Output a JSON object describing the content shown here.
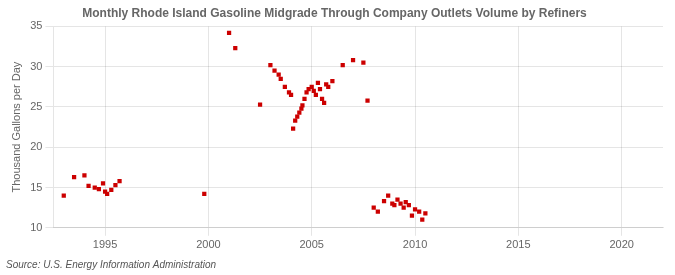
{
  "chart_data": {
    "type": "scatter",
    "title": "Monthly Rhode Island Gasoline Midgrade Through Company Outlets Volume by Refiners",
    "ylabel": "Thousand Gallons per Day",
    "source": "Source: U.S. Energy Information Administration",
    "color": "#cc0000",
    "marker": "square",
    "grid": true,
    "xlim": [
      1992.5,
      2022
    ],
    "ylim": [
      10,
      35
    ],
    "xticks": [
      1995,
      2000,
      2005,
      2010,
      2015,
      2020
    ],
    "yticks": [
      10,
      15,
      20,
      25,
      30,
      35
    ],
    "x": [
      1993.0,
      1993.5,
      1994.0,
      1994.2,
      1994.5,
      1994.7,
      1994.9,
      1995.0,
      1995.1,
      1995.3,
      1995.5,
      1995.7,
      1999.8,
      2001.0,
      2001.3,
      2002.5,
      2003.0,
      2003.2,
      2003.4,
      2003.5,
      2003.7,
      2003.9,
      2004.0,
      2004.1,
      2004.2,
      2004.3,
      2004.4,
      2004.5,
      2004.55,
      2004.65,
      2004.75,
      2004.85,
      2005.0,
      2005.1,
      2005.2,
      2005.3,
      2005.4,
      2005.5,
      2005.6,
      2005.7,
      2005.8,
      2006.0,
      2006.5,
      2007.0,
      2007.5,
      2007.7,
      2008.0,
      2008.2,
      2008.5,
      2008.7,
      2008.9,
      2009.0,
      2009.15,
      2009.3,
      2009.45,
      2009.55,
      2009.7,
      2009.85,
      2010.0,
      2010.2,
      2010.35,
      2010.5
    ],
    "values": [
      14.0,
      16.3,
      16.5,
      15.2,
      15.0,
      14.8,
      15.5,
      14.5,
      14.2,
      14.7,
      15.3,
      15.8,
      14.2,
      34.2,
      32.3,
      25.3,
      30.2,
      29.5,
      29.0,
      28.5,
      27.5,
      26.8,
      26.5,
      22.3,
      23.3,
      23.8,
      24.3,
      24.8,
      25.2,
      26.0,
      26.8,
      27.2,
      27.5,
      27.0,
      26.5,
      28.0,
      27.2,
      26.0,
      25.5,
      27.8,
      27.5,
      28.2,
      30.2,
      30.8,
      30.5,
      25.8,
      12.5,
      12.0,
      13.3,
      14.0,
      13.0,
      12.8,
      13.5,
      13.0,
      12.5,
      13.2,
      12.8,
      11.5,
      12.3,
      12.0,
      11.0,
      11.8
    ]
  }
}
